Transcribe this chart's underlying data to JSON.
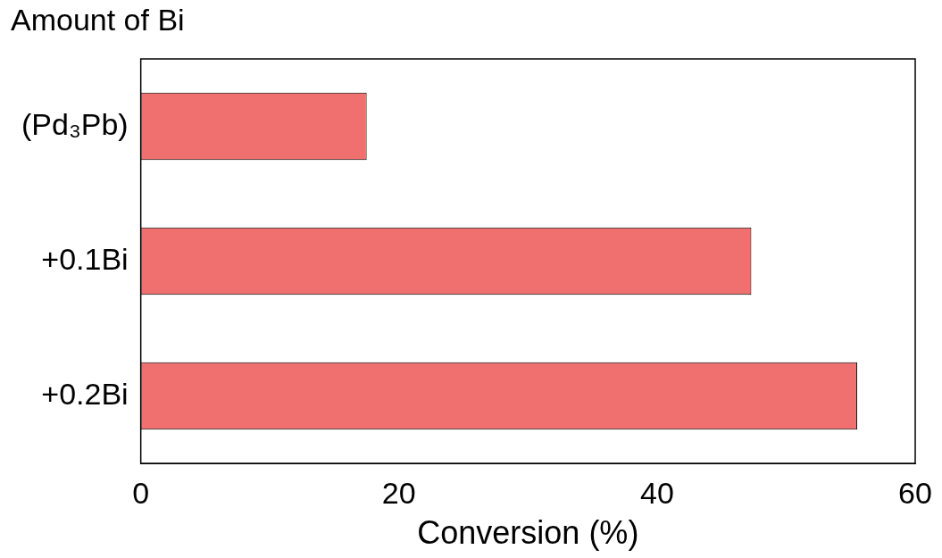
{
  "chart_data": {
    "type": "bar",
    "orientation": "horizontal",
    "ylabel": "Amount of Bi",
    "xlabel": "Conversion (%)",
    "categories": [
      "(Pd₃Pb)",
      "+0.1Bi",
      "+0.2Bi"
    ],
    "values": [
      17.5,
      47.3,
      55.5
    ],
    "color": "#f07070",
    "xlim": [
      0,
      60
    ],
    "xticks": [
      0,
      20,
      40,
      60
    ],
    "grid": false,
    "legend": false
  }
}
